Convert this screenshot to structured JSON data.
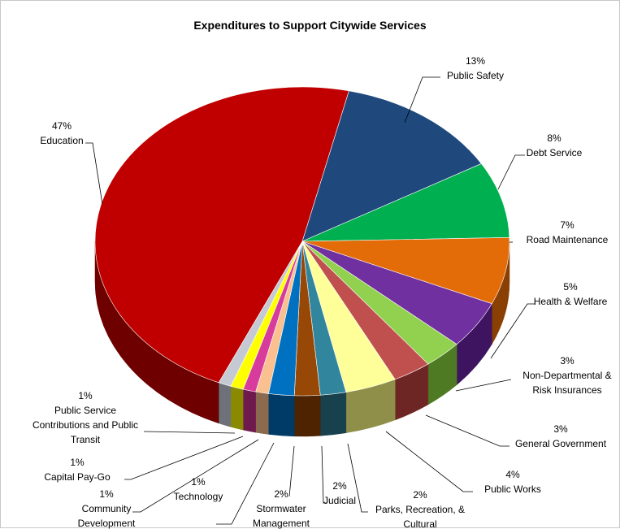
{
  "chart_data": {
    "type": "pie",
    "title": "Expenditures to Support Citywide Services",
    "slices": [
      {
        "label": "Public Safety",
        "value": 13,
        "pct": "13%",
        "color": "#1f497d",
        "side": "#10284a",
        "lines": [
          "Public Safety"
        ]
      },
      {
        "label": "Debt Service",
        "value": 8,
        "pct": "8%",
        "color": "#00b050",
        "side": "#006b2f",
        "lines": [
          "Debt Service"
        ]
      },
      {
        "label": "Road Maintenance",
        "value": 7,
        "pct": "7%",
        "color": "#e36c09",
        "side": "#8a3f03",
        "lines": [
          "Road Maintenance"
        ]
      },
      {
        "label": "Health & Welfare",
        "value": 5,
        "pct": "5%",
        "color": "#7030a0",
        "side": "#3e1460",
        "lines": [
          "Health & Welfare"
        ]
      },
      {
        "label": "Non-Departmental & Risk Insurances",
        "value": 3,
        "pct": "3%",
        "color": "#92d050",
        "side": "#4e7a23",
        "lines": [
          "Non-Departmental &",
          "Risk Insurances"
        ]
      },
      {
        "label": "General Government",
        "value": 3,
        "pct": "3%",
        "color": "#c0504d",
        "side": "#6e2624",
        "lines": [
          "General Government"
        ]
      },
      {
        "label": "Public Works",
        "value": 4,
        "pct": "4%",
        "color": "#ffff99",
        "side": "#8f8f4a",
        "lines": [
          "Public Works"
        ]
      },
      {
        "label": "Parks, Recreation, & Cultural",
        "value": 2,
        "pct": "2%",
        "color": "#31859c",
        "side": "#17414d",
        "lines": [
          "Parks, Recreation, &",
          "Cultural"
        ]
      },
      {
        "label": "Judicial",
        "value": 2,
        "pct": "2%",
        "color": "#974706",
        "side": "#4d2302",
        "lines": [
          "Judicial"
        ]
      },
      {
        "label": "Stormwater Management",
        "value": 2,
        "pct": "2%",
        "color": "#0070c0",
        "side": "#003a66",
        "lines": [
          "Stormwater",
          "Management"
        ]
      },
      {
        "label": "Technology",
        "value": 1,
        "pct": "1%",
        "color": "#fac090",
        "side": "#8c6a4d",
        "lines": [
          "Technology"
        ]
      },
      {
        "label": "Community Development",
        "value": 1,
        "pct": "1%",
        "color": "#d73b9c",
        "side": "#6e1a4e",
        "lines": [
          "Community",
          "Development"
        ]
      },
      {
        "label": "Capital Pay-Go",
        "value": 1,
        "pct": "1%",
        "color": "#ffff00",
        "side": "#8a8a00",
        "lines": [
          "Capital Pay-Go"
        ]
      },
      {
        "label": "Public Service Contributions and Public Transit",
        "value": 1,
        "pct": "1%",
        "color": "#c4c9d3",
        "side": "#6d727a",
        "lines": [
          "Public Service",
          "Contributions and Public",
          "Transit"
        ]
      },
      {
        "label": "Education",
        "value": 47,
        "pct": "47%",
        "color": "#c00000",
        "side": "#6e0000",
        "lines": [
          "Education"
        ]
      }
    ]
  }
}
